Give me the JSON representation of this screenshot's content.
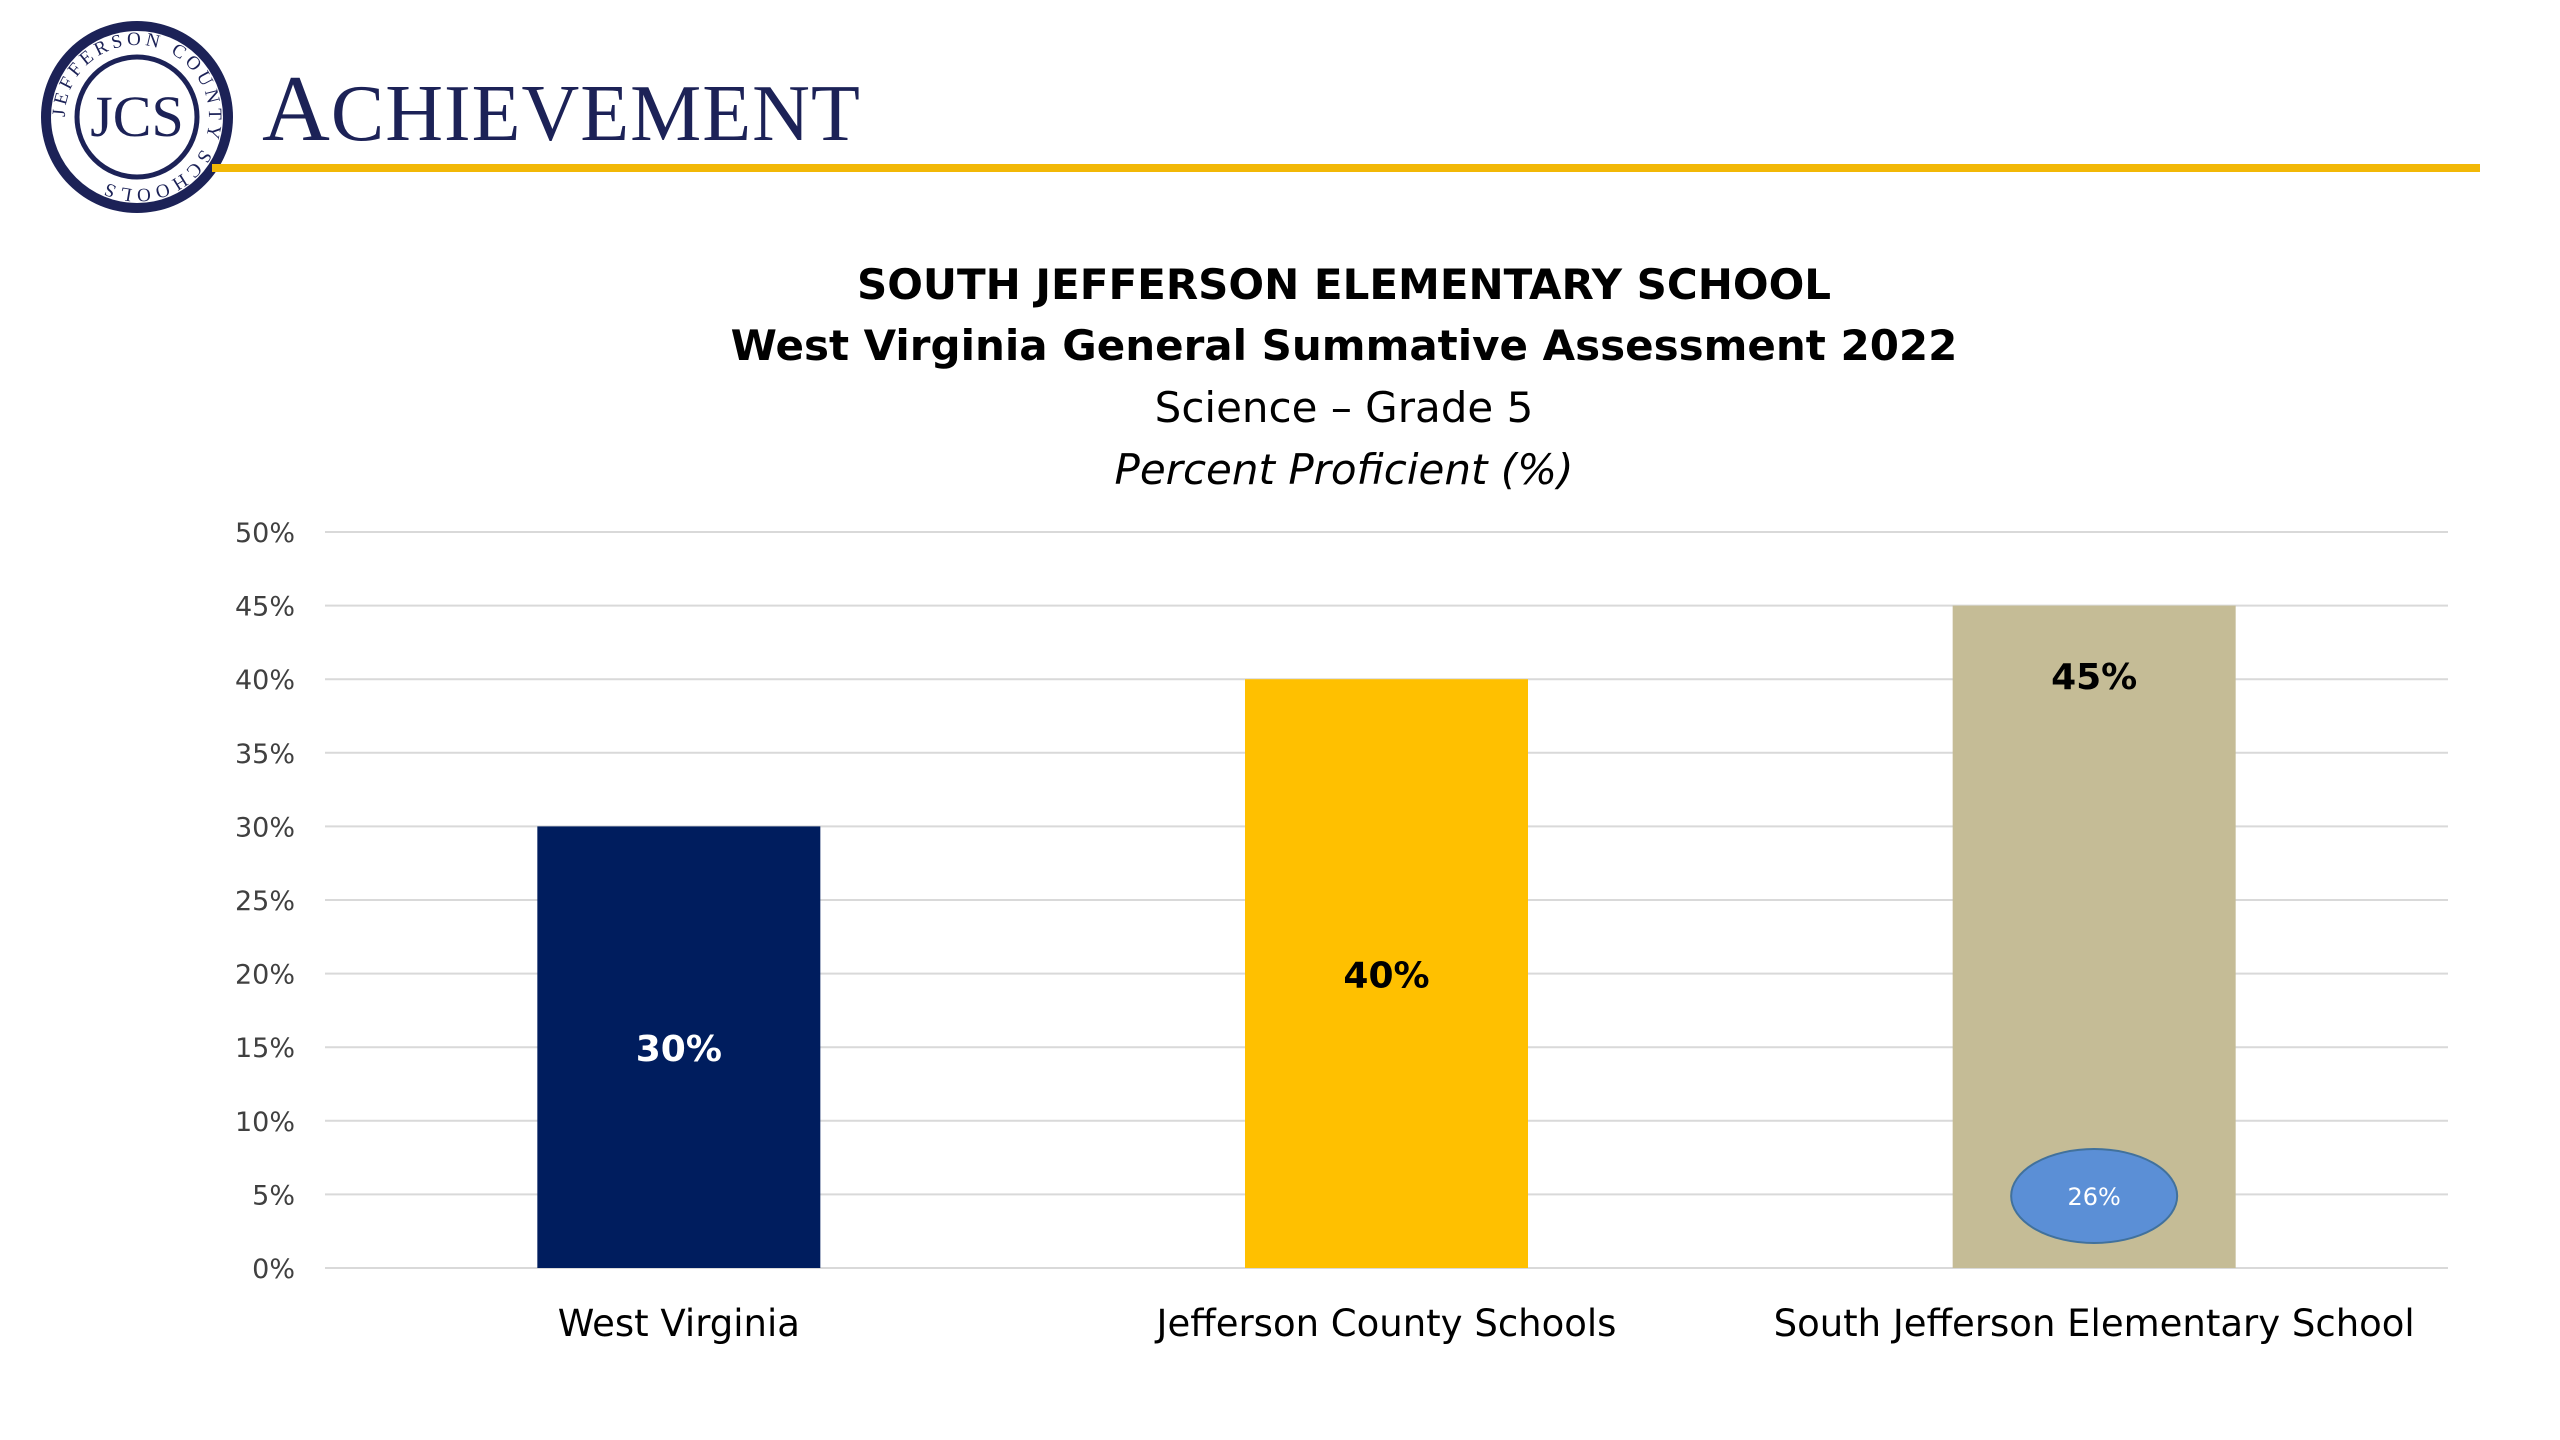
{
  "header": {
    "title": "ACHIEVEMENT",
    "logo": {
      "monogram": "JCS",
      "ring_text": "JEFFERSON COUNTY SCHOOLS",
      "colors": {
        "ring": "#1c2257",
        "fill": "#ffffff"
      }
    },
    "rule_color": "#f2b807"
  },
  "chart_data": {
    "type": "bar",
    "title": "SOUTH JEFFERSON ELEMENTARY SCHOOL",
    "subtitle": "West Virginia General Summative Assessment 2022",
    "subject": "Science – Grade 5",
    "ylabel_note": "Percent Proficient (%)",
    "categories": [
      "West Virginia",
      "Jefferson County Schools",
      "South Jefferson Elementary School"
    ],
    "values": [
      30,
      40,
      45
    ],
    "data_labels": [
      "30%",
      "40%",
      "45%"
    ],
    "bar_colors": [
      "#001d5e",
      "#ffc000",
      "#c5bc96"
    ],
    "data_label_colors": [
      "#ffffff",
      "#000000",
      "#000000"
    ],
    "yticks": [
      "0%",
      "5%",
      "10%",
      "15%",
      "20%",
      "25%",
      "30%",
      "35%",
      "40%",
      "45%",
      "50%"
    ],
    "ylim": [
      0,
      50
    ],
    "grid": true,
    "annotation": {
      "text": "26%",
      "category": "South Jefferson Elementary School",
      "value": 26,
      "color": "#5b8fd6"
    }
  }
}
